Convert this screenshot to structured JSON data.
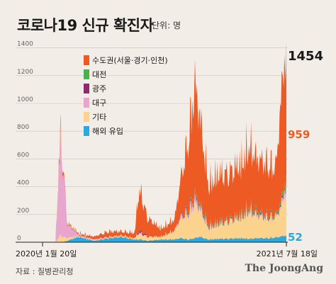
{
  "header": {
    "title": "코로나19 신규 확진자",
    "unit": "단위: 명"
  },
  "footer": {
    "source": "자료 : 질병관리청",
    "brand": "The JoongAng"
  },
  "colors": {
    "수도권": "#ee5a24",
    "대전": "#4caf50",
    "광주": "#8e2a6e",
    "대구": "#e8a6cf",
    "기타": "#fbd38d",
    "해외 유입": "#29a9e0"
  },
  "chart_data": {
    "type": "area",
    "stacked": true,
    "x_start_label": "2020년 1월 20일",
    "x_end_label": "2021년 7월 18일",
    "ylim": [
      0,
      1500
    ],
    "y_ticks": [
      0,
      200,
      400,
      600,
      800,
      1000,
      1200,
      1400
    ],
    "legend_position": "top-center",
    "series": [
      {
        "name": "수도권(서울·경기·인천)",
        "key": "수도권"
      },
      {
        "name": "대전",
        "key": "대전"
      },
      {
        "name": "광주",
        "key": "광주"
      },
      {
        "name": "대구",
        "key": "대구"
      },
      {
        "name": "기타",
        "key": "기타"
      },
      {
        "name": "해외 유입",
        "key": "해외 유입"
      }
    ],
    "approx_daily_series": {
      "dates": [
        "2020-01-20",
        "2020-02-18",
        "2020-02-24",
        "2020-02-29",
        "2020-03-05",
        "2020-03-15",
        "2020-04-10",
        "2020-05-15",
        "2020-06-15",
        "2020-07-15",
        "2020-08-13",
        "2020-08-20",
        "2020-08-27",
        "2020-09-10",
        "2020-10-10",
        "2020-11-10",
        "2020-11-25",
        "2020-12-10",
        "2020-12-25",
        "2021-01-05",
        "2021-01-25",
        "2021-02-15",
        "2021-03-10",
        "2021-04-10",
        "2021-04-25",
        "2021-05-15",
        "2021-06-05",
        "2021-06-25",
        "2021-07-05",
        "2021-07-10",
        "2021-07-18"
      ],
      "수도권": [
        0,
        0,
        30,
        40,
        30,
        10,
        10,
        20,
        40,
        30,
        40,
        250,
        280,
        130,
        60,
        80,
        280,
        500,
        820,
        650,
        300,
        350,
        320,
        380,
        450,
        380,
        380,
        350,
        700,
        850,
        959
      ],
      "대전": [
        0,
        0,
        0,
        0,
        0,
        0,
        0,
        0,
        0,
        0,
        0,
        0,
        0,
        0,
        0,
        0,
        0,
        10,
        15,
        15,
        10,
        10,
        10,
        10,
        15,
        15,
        10,
        10,
        20,
        30,
        40
      ],
      "광주": [
        0,
        0,
        0,
        0,
        0,
        0,
        0,
        0,
        0,
        0,
        0,
        10,
        15,
        5,
        0,
        0,
        10,
        10,
        15,
        10,
        5,
        5,
        5,
        5,
        10,
        10,
        10,
        5,
        10,
        10,
        15
      ],
      "대구": [
        0,
        0,
        400,
        700,
        550,
        100,
        10,
        5,
        5,
        0,
        0,
        5,
        5,
        0,
        0,
        5,
        10,
        20,
        40,
        20,
        10,
        5,
        5,
        5,
        10,
        10,
        5,
        5,
        10,
        30,
        45
      ],
      "기타": [
        0,
        0,
        30,
        50,
        40,
        20,
        5,
        5,
        5,
        10,
        10,
        40,
        40,
        30,
        20,
        60,
        150,
        180,
        250,
        200,
        80,
        100,
        120,
        150,
        200,
        160,
        150,
        150,
        200,
        250,
        343
      ],
      "해외 유입": [
        0,
        0,
        0,
        0,
        0,
        10,
        40,
        10,
        30,
        40,
        20,
        20,
        20,
        10,
        20,
        20,
        30,
        20,
        30,
        40,
        20,
        25,
        25,
        30,
        25,
        30,
        30,
        35,
        40,
        45,
        52
      ]
    },
    "annotations": [
      {
        "text": "1454",
        "series": "total",
        "value": 1454
      },
      {
        "text": "959",
        "series": "수도권",
        "value": 959
      },
      {
        "text": "52",
        "series": "해외 유입",
        "value": 52
      }
    ]
  }
}
